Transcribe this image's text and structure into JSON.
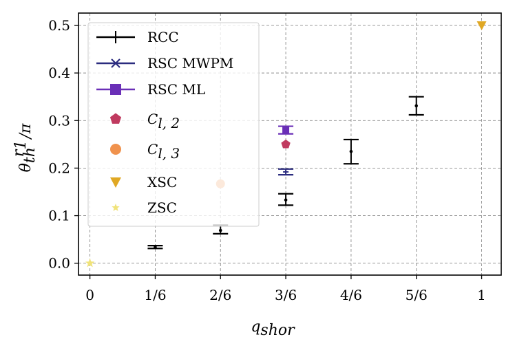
{
  "chart_data": {
    "type": "scatter",
    "xlabel_main": "q",
    "xlabel_sub": "shor",
    "ylabel_main": "θ",
    "ylabel_sub": "th",
    "ylabel_sup": "r",
    "ylabel_sup_sub": "1",
    "ylabel_tail": "/π",
    "categories": [
      "0",
      "1/6",
      "2/6",
      "3/6",
      "4/6",
      "5/6",
      "1"
    ],
    "x": [
      0,
      0.1667,
      0.3333,
      0.5,
      0.6667,
      0.8333,
      1
    ],
    "xlim": [
      -0.0292,
      1.05
    ],
    "ylim": [
      -0.025,
      0.526
    ],
    "yticks": [
      "0.0",
      "0.1",
      "0.2",
      "0.3",
      "0.4",
      "0.5"
    ],
    "ytick_values": [
      0,
      0.1,
      0.2,
      0.3,
      0.4,
      0.5
    ],
    "grid": true,
    "legend_position": "upper-left",
    "series": [
      {
        "name": "RCC",
        "color": "#000000",
        "marker": "errorbar",
        "points": [
          {
            "x": 0.1667,
            "y": 0.034,
            "low": 0.031,
            "high": 0.037
          },
          {
            "x": 0.3333,
            "y": 0.069,
            "low": 0.062,
            "high": 0.08
          },
          {
            "x": 0.5,
            "y": 0.133,
            "low": 0.122,
            "high": 0.146
          },
          {
            "x": 0.6667,
            "y": 0.235,
            "low": 0.209,
            "high": 0.26
          },
          {
            "x": 0.8333,
            "y": 0.331,
            "low": 0.312,
            "high": 0.35
          }
        ]
      },
      {
        "name": "RSC MWPM",
        "color": "#2b2c7f",
        "marker": "errorbar",
        "points": [
          {
            "x": 0.5,
            "y": 0.192,
            "low": 0.186,
            "high": 0.198
          }
        ]
      },
      {
        "name": "RSC ML",
        "color": "#6a2fb7",
        "marker": "square-errorbar",
        "points": [
          {
            "x": 0.5,
            "y": 0.28,
            "low": 0.272,
            "high": 0.288
          }
        ]
      },
      {
        "name": "C",
        "name_sub": "l, 2",
        "color": "#c03a5f",
        "marker": "pentagon",
        "points": [
          {
            "x": 0.5,
            "y": 0.25
          }
        ]
      },
      {
        "name": "C",
        "name_sub": "l, 3",
        "color": "#f0924d",
        "marker": "circle",
        "points": [
          {
            "x": 0.3333,
            "y": 0.167
          }
        ]
      },
      {
        "name": "XSC",
        "color": "#e0a824",
        "marker": "triangle-down",
        "points": [
          {
            "x": 1,
            "y": 0.5
          }
        ]
      },
      {
        "name": "ZSC",
        "color": "#f0e37a",
        "marker": "star",
        "points": [
          {
            "x": 0,
            "y": 0
          }
        ]
      }
    ]
  }
}
